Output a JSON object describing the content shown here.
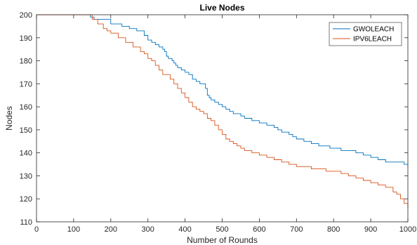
{
  "chart_data": {
    "type": "line",
    "title": "Live Nodes",
    "xlabel": "Number of Rounds",
    "ylabel": "Nodes",
    "xlim": [
      0,
      1000
    ],
    "ylim": [
      110,
      200
    ],
    "xticks": [
      "0",
      "100",
      "200",
      "300",
      "400",
      "500",
      "600",
      "700",
      "800",
      "900",
      "1000"
    ],
    "yticks": [
      "110",
      "120",
      "130",
      "140",
      "150",
      "160",
      "170",
      "180",
      "190",
      "200"
    ],
    "legend_position": "top-right",
    "step": true,
    "series": [
      {
        "name": "GWOLEACH",
        "color": "#0072BD",
        "x": [
          0,
          145,
          155,
          200,
          230,
          250,
          270,
          290,
          300,
          310,
          320,
          330,
          340,
          345,
          350,
          355,
          365,
          370,
          375,
          380,
          390,
          400,
          410,
          420,
          430,
          440,
          455,
          460,
          465,
          470,
          480,
          490,
          500,
          510,
          520,
          530,
          540,
          550,
          560,
          580,
          600,
          610,
          620,
          640,
          650,
          660,
          680,
          690,
          700,
          720,
          740,
          760,
          790,
          820,
          860,
          880,
          900,
          920,
          940,
          990,
          1000
        ],
        "y": [
          200,
          199,
          198,
          196,
          195,
          194,
          193,
          191,
          189,
          188,
          187,
          186,
          185,
          184,
          182,
          181,
          180,
          179,
          178,
          177,
          176,
          175,
          174,
          172,
          171,
          170,
          168,
          165,
          164,
          163,
          162,
          161,
          160,
          159,
          158,
          157,
          157,
          156,
          155,
          154,
          153,
          153,
          152,
          151,
          150,
          149,
          148,
          147,
          146,
          145,
          144,
          143,
          142,
          141,
          140,
          139,
          138,
          137,
          136,
          135,
          134
        ]
      },
      {
        "name": "IPV6LEACH",
        "color": "#D95319",
        "x": [
          0,
          150,
          165,
          180,
          190,
          200,
          220,
          240,
          260,
          280,
          290,
          300,
          310,
          320,
          330,
          340,
          360,
          370,
          380,
          390,
          400,
          410,
          420,
          430,
          440,
          450,
          460,
          470,
          480,
          490,
          500,
          510,
          520,
          530,
          540,
          550,
          560,
          580,
          600,
          620,
          640,
          660,
          680,
          700,
          720,
          740,
          760,
          780,
          800,
          820,
          840,
          860,
          880,
          900,
          920,
          940,
          960,
          970,
          980,
          990,
          1000
        ],
        "y": [
          200,
          198,
          196,
          194,
          193,
          192,
          190,
          188,
          186,
          184,
          183,
          181,
          180,
          178,
          176,
          174,
          172,
          170,
          168,
          166,
          164,
          162,
          160,
          159,
          158,
          157,
          155,
          154,
          152,
          150,
          148,
          146,
          145,
          144,
          143,
          142,
          141,
          140,
          139,
          138,
          137,
          136,
          135,
          134,
          134,
          133,
          133,
          132,
          132,
          131,
          130,
          129,
          128,
          127,
          126,
          125,
          123,
          122,
          120,
          118,
          116
        ]
      }
    ]
  }
}
